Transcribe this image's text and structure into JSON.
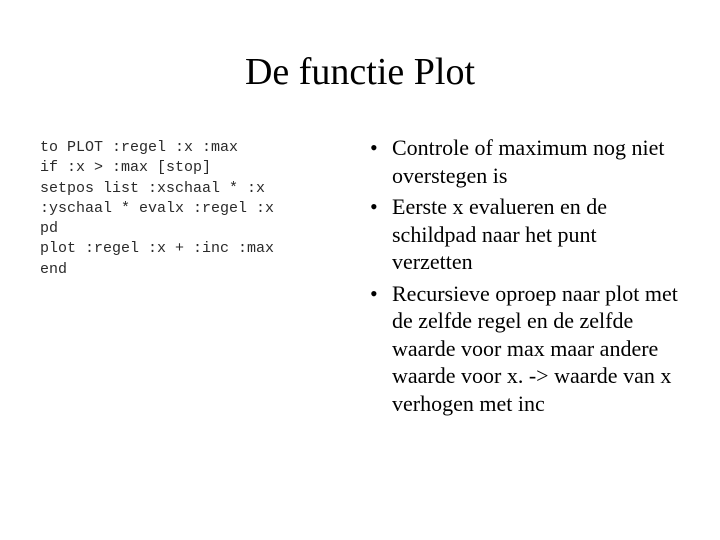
{
  "title": "De functie Plot",
  "code": "to PLOT :regel :x :max\nif :x > :max [stop]\nsetpos list :xschaal * :x\n:yschaal * evalx :regel :x\npd\nplot :regel :x + :inc :max\nend",
  "bullets": [
    "Controle of maximum nog niet overstegen is",
    "Eerste x evalueren en de schildpad naar het punt verzetten",
    "Recursieve oproep naar plot met de zelfde regel en de zelfde waarde voor max maar andere waarde voor x. -> waarde van x verhogen met inc"
  ],
  "styling": {
    "background_color": "#ffffff",
    "text_color": "#000000",
    "title_fontsize": 38,
    "body_fontsize": 22,
    "code_fontsize": 15,
    "title_font": "Times New Roman",
    "body_font": "Times New Roman",
    "code_font": "Courier New",
    "slide_width": 720,
    "slide_height": 540
  }
}
